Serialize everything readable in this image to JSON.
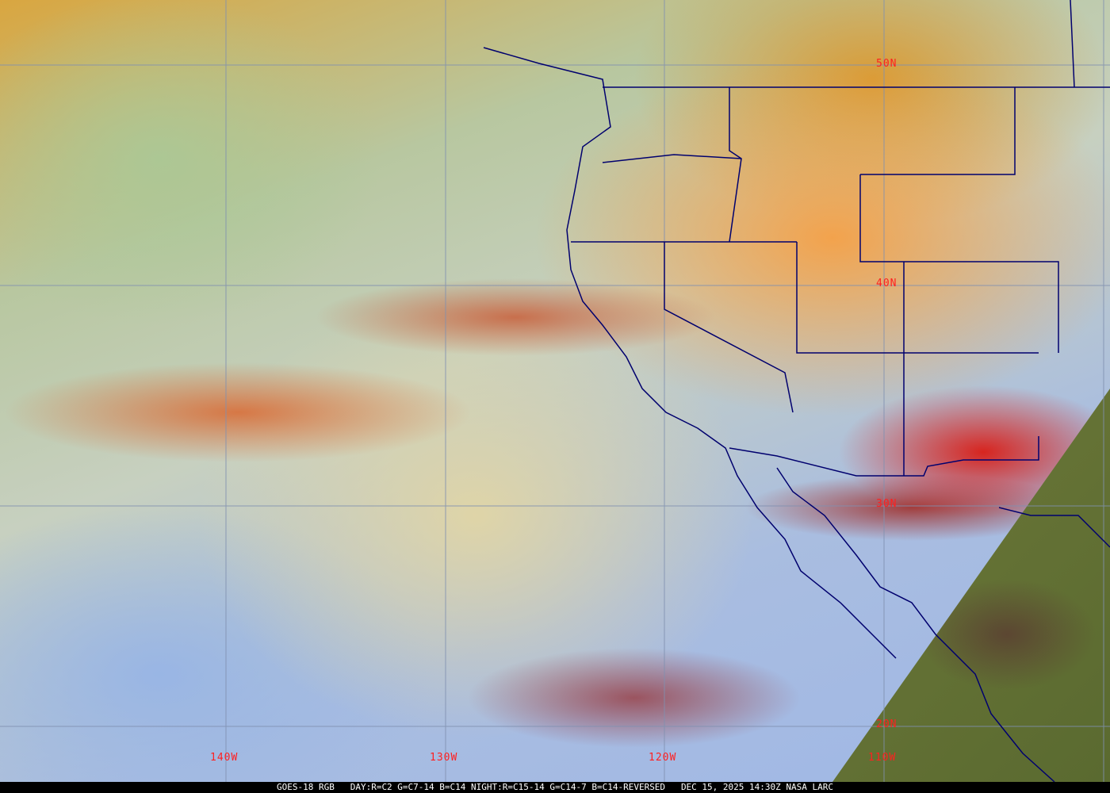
{
  "map": {
    "latitude_labels": [
      "50N",
      "40N",
      "30N",
      "20N"
    ],
    "longitude_labels": [
      "140W",
      "130W",
      "120W",
      "110W"
    ],
    "colors": {
      "grid": "#8090b0",
      "borders": "#00006e",
      "labels": "#ff2020"
    }
  },
  "caption": {
    "satellite": "GOES-18 RGB",
    "recipe": "DAY:R=C2 G=C7-14 B=C14 NIGHT:R=C15-14 G=C14-7 B=C14-REVERSED",
    "datetime": "DEC 15, 2025 14:30Z",
    "credit": "NASA LARC"
  }
}
